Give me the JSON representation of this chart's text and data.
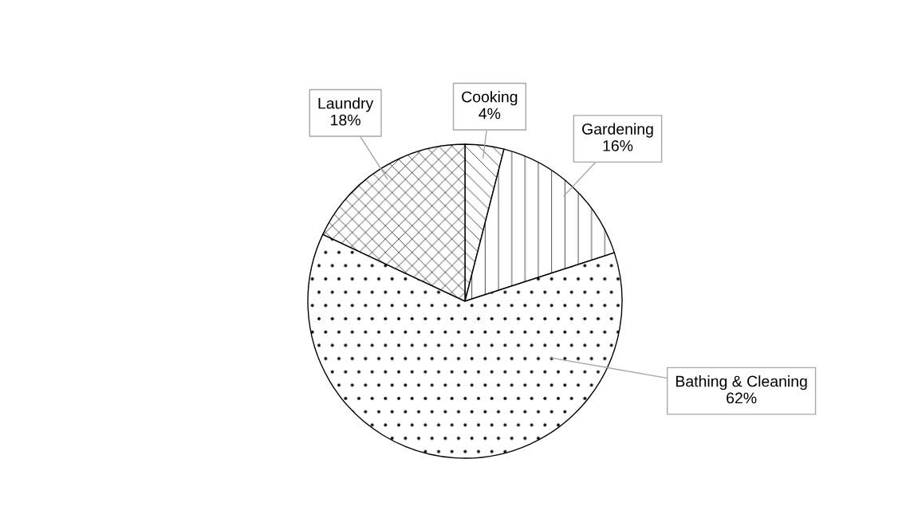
{
  "chart_data": {
    "type": "pie",
    "categories": [
      "Cooking",
      "Gardening",
      "Bathing & Cleaning",
      "Laundry"
    ],
    "values": [
      4,
      16,
      62,
      18
    ],
    "colors": [
      "#ffffff",
      "#ffffff",
      "#ffffff",
      "#ffffff"
    ],
    "value_labels": [
      "4%",
      "16%",
      "62%",
      "18%"
    ],
    "legend": false
  }
}
